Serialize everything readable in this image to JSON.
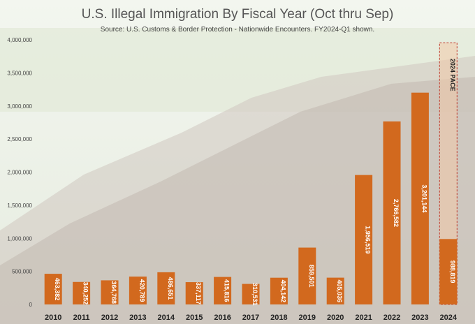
{
  "chart_data": {
    "type": "bar",
    "title": "U.S. Illegal Immigration By Fiscal Year (Oct thru Sep)",
    "subtitle": "Source: U.S. Customs & Border Protection - Nationwide Encounters. FY2024-Q1 shown.",
    "categories": [
      "2010",
      "2011",
      "2012",
      "2013",
      "2014",
      "2015",
      "2016",
      "2017",
      "2018",
      "2019",
      "2020",
      "2021",
      "2022",
      "2023",
      "2024"
    ],
    "values": [
      463382,
      340252,
      364768,
      420789,
      486651,
      337117,
      415816,
      310531,
      404142,
      859501,
      405036,
      1956519,
      2766582,
      3201144,
      988819
    ],
    "value_labels": [
      "463,382",
      "340,252",
      "364,768",
      "420,789",
      "486,651",
      "337,117",
      "415,816",
      "310,531",
      "404,142",
      "859,501",
      "405,036",
      "1,956,519",
      "2,766,582",
      "3,201,144",
      "988,819"
    ],
    "pace": {
      "category": "2024",
      "label": "2024 PACE",
      "value": 3955276
    },
    "y_ticks": [
      0,
      500000,
      1000000,
      1500000,
      2000000,
      2500000,
      3000000,
      3500000,
      4000000
    ],
    "y_tick_labels": [
      "0",
      "500,000",
      "1,000,000",
      "1,500,000",
      "2,000,000",
      "2,500,000",
      "3,000,000",
      "3,500,000",
      "4,000,000"
    ],
    "ylim": [
      0,
      4000000
    ],
    "xlabel": "",
    "ylabel": "",
    "grid": false,
    "colors": {
      "bar": "#d2691e",
      "pace_fill": "#f2c9a8",
      "pace_border": "#c0392b",
      "label_text": "#ffffff",
      "axis_text": "#444444"
    }
  }
}
